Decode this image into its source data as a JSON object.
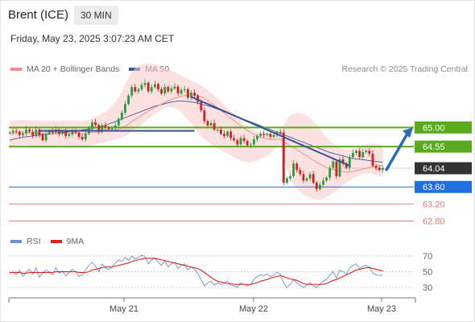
{
  "header": {
    "instrument": "Brent (ICE)",
    "timeframe": "30 MIN",
    "datetime": "Friday, May 23, 2025 3:07:23 AM CET"
  },
  "legend": {
    "ma20_label": "MA 20 + Bollinger Bands",
    "ma50_label": "MA 50",
    "credit": "Research © 2025 Trading Central"
  },
  "rsi_legend": {
    "rsi_label": "RSI",
    "ma_label": "9MA"
  },
  "colors": {
    "resistance": "#5aaa1e",
    "support_box": "#1f6fe0",
    "support_line": "#2a4f8e",
    "red_level": "#e87a7a",
    "last_price": "#333333",
    "ma20": "#f08a8a",
    "ma50": "#3a5aa0",
    "rsi": "#6a8fd8",
    "rsi_ma": "#e02020",
    "candle_up": "#2a9a3a",
    "candle_down": "#d02020",
    "trend": "#3a4f9a",
    "forecast_arrow": "#2a6ab8"
  },
  "chart_data": [
    {
      "type": "candlestick",
      "title": "Brent (ICE) 30 MIN",
      "x_tick_labels": [
        "May 21",
        "May 22",
        "May 23"
      ],
      "ylim": [
        62.6,
        66.2
      ],
      "levels": [
        {
          "label": "65.00",
          "value": 65.0,
          "kind": "resistance"
        },
        {
          "label": "64.55",
          "value": 64.55,
          "kind": "resistance"
        },
        {
          "label": "64.04",
          "value": 64.04,
          "kind": "last_price"
        },
        {
          "label": "63.60",
          "value": 63.6,
          "kind": "support"
        },
        {
          "label": "63.20",
          "value": 63.2,
          "kind": "support_minor"
        },
        {
          "label": "62.80",
          "value": 62.8,
          "kind": "support_minor"
        }
      ],
      "close": [
        64.88,
        64.92,
        64.9,
        64.82,
        64.86,
        64.95,
        64.9,
        64.8,
        64.95,
        64.82,
        64.7,
        64.85,
        64.92,
        64.88,
        64.95,
        64.85,
        64.9,
        64.8,
        64.84,
        64.92,
        64.88,
        64.78,
        64.72,
        64.85,
        65.0,
        65.12,
        65.06,
        64.9,
        65.05,
        65.0,
        64.96,
        64.98,
        65.05,
        65.2,
        65.35,
        65.55,
        65.75,
        65.95,
        65.85,
        65.9,
        66.0,
        66.05,
        65.85,
        65.95,
        66.02,
        65.9,
        65.8,
        65.95,
        65.85,
        65.92,
        65.96,
        65.8,
        65.88,
        65.9,
        65.7,
        65.82,
        65.75,
        65.6,
        65.4,
        65.15,
        65.05,
        65.1,
        64.95,
        64.95,
        64.85,
        64.8,
        64.9,
        64.75,
        64.7,
        64.6,
        64.75,
        64.68,
        64.58,
        64.6,
        64.72,
        64.8,
        64.85,
        64.82,
        64.85,
        64.78,
        64.82,
        64.9,
        64.88,
        63.7,
        63.8,
        63.85,
        64.15,
        64.0,
        63.9,
        63.75,
        63.8,
        63.9,
        63.7,
        63.55,
        63.65,
        63.75,
        63.82,
        64.05,
        64.2,
        63.85,
        64.25,
        64.15,
        64.05,
        64.3,
        64.4,
        64.45,
        64.3,
        64.42,
        64.45,
        64.38,
        64.1,
        64.05,
        64.0,
        64.04
      ],
      "ma20": [
        64.85,
        64.86,
        64.87,
        64.87,
        64.88,
        64.88,
        64.87,
        64.86,
        64.86,
        64.86,
        64.85,
        64.85,
        64.86,
        64.86,
        64.86,
        64.86,
        64.87,
        64.86,
        64.86,
        64.87,
        64.86,
        64.86,
        64.85,
        64.86,
        64.87,
        64.88,
        64.89,
        64.89,
        64.9,
        64.91,
        64.92,
        64.93,
        64.94,
        64.96,
        64.99,
        65.03,
        65.08,
        65.14,
        65.19,
        65.24,
        65.29,
        65.34,
        65.38,
        65.43,
        65.47,
        65.51,
        65.55,
        65.59,
        65.63,
        65.66,
        65.69,
        65.71,
        65.73,
        65.75,
        65.76,
        65.77,
        65.76,
        65.75,
        65.72,
        65.68,
        65.63,
        65.58,
        65.52,
        65.46,
        65.4,
        65.34,
        65.28,
        65.22,
        65.16,
        65.1,
        65.04,
        64.98,
        64.93,
        64.88,
        64.84,
        64.8,
        64.77,
        64.75,
        64.73,
        64.72,
        64.72,
        64.72,
        64.72,
        64.67,
        64.62,
        64.57,
        64.53,
        64.48,
        64.43,
        64.38,
        64.33,
        64.28,
        64.23,
        64.18,
        64.14,
        64.1,
        64.06,
        64.03,
        64.01,
        63.98,
        63.97,
        63.96,
        63.95,
        63.95,
        63.96,
        63.98,
        64.0,
        64.02,
        64.04,
        64.06,
        64.08,
        64.09,
        64.1,
        64.1
      ],
      "ma50": [
        64.7,
        64.72,
        64.74,
        64.75,
        64.77,
        64.78,
        64.79,
        64.8,
        64.81,
        64.82,
        64.83,
        64.84,
        64.85,
        64.86,
        64.86,
        64.87,
        64.88,
        64.89,
        64.9,
        64.91,
        64.92,
        64.93,
        64.94,
        64.95,
        64.96,
        64.97,
        64.99,
        65.01,
        65.03,
        65.05,
        65.08,
        65.11,
        65.14,
        65.17,
        65.2,
        65.23,
        65.26,
        65.29,
        65.32,
        65.35,
        65.38,
        65.41,
        65.44,
        65.47,
        65.5,
        65.52,
        65.54,
        65.56,
        65.58,
        65.6,
        65.61,
        65.62,
        65.62,
        65.62,
        65.61,
        65.6,
        65.59,
        65.57,
        65.55,
        65.53,
        65.51,
        65.49,
        65.46,
        65.43,
        65.4,
        65.37,
        65.34,
        65.31,
        65.28,
        65.25,
        65.22,
        65.19,
        65.16,
        65.13,
        65.1,
        65.07,
        65.04,
        65.01,
        64.98,
        64.95,
        64.92,
        64.89,
        64.86,
        64.83,
        64.8,
        64.77,
        64.74,
        64.71,
        64.68,
        64.65,
        64.62,
        64.59,
        64.56,
        64.53,
        64.5,
        64.47,
        64.44,
        64.41,
        64.39,
        64.37,
        64.35,
        64.33,
        64.31,
        64.29,
        64.27,
        64.26,
        64.25,
        64.24,
        64.23,
        64.22,
        64.21,
        64.2,
        64.19,
        64.18
      ],
      "bb_upper": [
        65.15,
        65.16,
        65.17,
        65.17,
        65.18,
        65.18,
        65.17,
        65.16,
        65.16,
        65.16,
        65.15,
        65.15,
        65.16,
        65.16,
        65.16,
        65.16,
        65.17,
        65.16,
        65.16,
        65.17,
        65.16,
        65.16,
        65.15,
        65.16,
        65.17,
        65.22,
        65.26,
        65.28,
        65.32,
        65.36,
        65.42,
        65.5,
        65.6,
        65.72,
        65.85,
        66.0,
        66.15,
        66.3,
        66.4,
        66.45,
        66.48,
        66.5,
        66.5,
        66.5,
        66.48,
        66.46,
        66.43,
        66.4,
        66.37,
        66.34,
        66.3,
        66.26,
        66.22,
        66.18,
        66.14,
        66.1,
        66.06,
        66.02,
        65.98,
        65.94,
        65.88,
        65.82,
        65.75,
        65.68,
        65.6,
        65.52,
        65.45,
        65.38,
        65.3,
        65.22,
        65.15,
        65.08,
        65.02,
        64.97,
        64.93,
        64.9,
        64.88,
        64.86,
        64.85,
        64.84,
        64.84,
        64.84,
        64.85,
        65.05,
        65.2,
        65.28,
        65.32,
        65.34,
        65.34,
        65.32,
        65.28,
        65.22,
        65.15,
        65.06,
        64.96,
        64.86,
        64.76,
        64.68,
        64.62,
        64.56,
        64.52,
        64.5,
        64.48,
        64.48,
        64.5,
        64.52,
        64.55,
        64.58,
        64.6,
        64.62,
        64.62,
        64.6,
        64.58,
        64.56
      ],
      "bb_lower": [
        64.55,
        64.56,
        64.57,
        64.57,
        64.58,
        64.58,
        64.57,
        64.56,
        64.56,
        64.56,
        64.55,
        64.55,
        64.56,
        64.56,
        64.56,
        64.56,
        64.57,
        64.56,
        64.56,
        64.57,
        64.56,
        64.56,
        64.55,
        64.56,
        64.57,
        64.58,
        64.6,
        64.62,
        64.64,
        64.66,
        64.68,
        64.7,
        64.72,
        64.74,
        64.76,
        64.8,
        64.84,
        64.9,
        64.96,
        65.02,
        65.08,
        65.14,
        65.2,
        65.26,
        65.32,
        65.38,
        65.42,
        65.46,
        65.48,
        65.48,
        65.46,
        65.42,
        65.36,
        65.28,
        65.18,
        65.08,
        64.98,
        64.88,
        64.8,
        64.72,
        64.66,
        64.6,
        64.54,
        64.5,
        64.46,
        64.42,
        64.38,
        64.34,
        64.3,
        64.26,
        64.22,
        64.2,
        64.18,
        64.18,
        64.2,
        64.22,
        64.26,
        64.3,
        64.35,
        64.4,
        64.46,
        64.52,
        64.58,
        64.28,
        64.0,
        63.8,
        63.65,
        63.55,
        63.48,
        63.42,
        63.38,
        63.35,
        63.32,
        63.3,
        63.3,
        63.32,
        63.36,
        63.4,
        63.46,
        63.52,
        63.58,
        63.64,
        63.7,
        63.75,
        63.8,
        63.84,
        63.88,
        63.9,
        63.92,
        63.92,
        63.9,
        63.88,
        63.86,
        63.84
      ],
      "trendlines": [
        {
          "from": [
            55,
            65.72
          ],
          "to": [
            103,
            64.1
          ]
        },
        {
          "from": [
            9,
            64.92
          ],
          "to": [
            56,
            64.92
          ]
        }
      ],
      "forecast_target": 65.0
    },
    {
      "type": "line",
      "title": "RSI",
      "ylim": [
        20,
        78
      ],
      "y_tick_labels": [
        "70",
        "50",
        "30"
      ],
      "series": [
        {
          "name": "RSI",
          "values": [
            48,
            50,
            46,
            52,
            44,
            49,
            53,
            47,
            55,
            43,
            48,
            52,
            50,
            46,
            55,
            48,
            51,
            45,
            49,
            53,
            50,
            44,
            46,
            52,
            58,
            62,
            57,
            50,
            60,
            55,
            53,
            56,
            61,
            65,
            63,
            68,
            64,
            70,
            66,
            68,
            71,
            69,
            60,
            65,
            67,
            62,
            58,
            64,
            56,
            60,
            62,
            54,
            58,
            60,
            52,
            56,
            53,
            48,
            40,
            32,
            36,
            38,
            33,
            36,
            34,
            35,
            38,
            33,
            32,
            30,
            36,
            34,
            32,
            34,
            40,
            44,
            46,
            45,
            47,
            44,
            46,
            49,
            47,
            36,
            30,
            34,
            40,
            36,
            33,
            30,
            33,
            36,
            32,
            30,
            34,
            38,
            40,
            46,
            50,
            42,
            52,
            50,
            47,
            55,
            58,
            60,
            54,
            57,
            58,
            56,
            48,
            46,
            45,
            46
          ]
        },
        {
          "name": "9MA",
          "values": [
            49,
            49,
            49,
            49,
            48,
            48,
            49,
            49,
            49,
            49,
            49,
            49,
            49,
            49,
            50,
            50,
            50,
            50,
            50,
            50,
            50,
            49,
            49,
            49,
            50,
            52,
            53,
            54,
            55,
            56,
            56,
            56,
            57,
            58,
            59,
            60,
            61,
            63,
            64,
            65,
            66,
            67,
            67,
            67,
            67,
            66,
            65,
            64,
            63,
            62,
            61,
            60,
            59,
            58,
            57,
            56,
            55,
            54,
            52,
            49,
            46,
            43,
            40,
            38,
            37,
            36,
            35,
            35,
            34,
            34,
            34,
            34,
            34,
            34,
            35,
            36,
            38,
            39,
            40,
            42,
            43,
            44,
            45,
            44,
            42,
            41,
            40,
            39,
            37,
            35,
            34,
            34,
            34,
            34,
            34,
            34,
            35,
            37,
            39,
            40,
            42,
            44,
            46,
            48,
            50,
            52,
            53,
            54,
            55,
            55,
            54,
            53,
            52,
            51
          ]
        }
      ]
    }
  ]
}
